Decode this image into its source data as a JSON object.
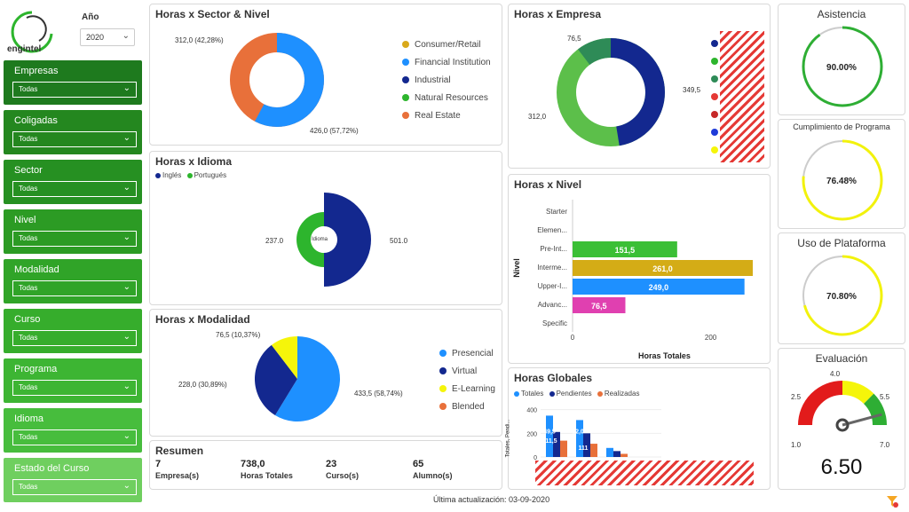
{
  "logo": {
    "text": "engintel"
  },
  "year": {
    "label": "Año",
    "value": "2020"
  },
  "slicers": [
    {
      "label": "Empresas",
      "value": "Todas",
      "color": "#1e7a1e"
    },
    {
      "label": "Coligadas",
      "value": "Todas",
      "color": "#24871f"
    },
    {
      "label": "Sector",
      "value": "Todas",
      "color": "#269022"
    },
    {
      "label": "Nivel",
      "value": "Todas",
      "color": "#2c9b24"
    },
    {
      "label": "Modalidad",
      "value": "Todas",
      "color": "#30a428"
    },
    {
      "label": "Curso",
      "value": "Todas",
      "color": "#36ad2c"
    },
    {
      "label": "Programa",
      "value": "Todas",
      "color": "#3db533"
    },
    {
      "label": "Idioma",
      "value": "Todas",
      "color": "#47bd3d"
    },
    {
      "label": "Estado del Curso",
      "value": "Todas",
      "color": "#6fcf5f"
    }
  ],
  "sector": {
    "title": "Horas x Sector & Nivel",
    "label_a": "312,0 (42,28%)",
    "label_b": "426,0 (57,72%)",
    "legend": [
      {
        "name": "Consumer/Retail",
        "color": "#d9a91b"
      },
      {
        "name": "Financial Institution",
        "color": "#1e90ff"
      },
      {
        "name": "Industrial",
        "color": "#13288f"
      },
      {
        "name": "Natural Resources",
        "color": "#2db52d"
      },
      {
        "name": "Real Estate",
        "color": "#e8703a"
      }
    ],
    "chart_data": {
      "type": "pie",
      "labels": [
        "Real Estate",
        "Financial Institution"
      ],
      "values": [
        312.0,
        426.0
      ],
      "percent": [
        42.28,
        57.72
      ]
    }
  },
  "empresa": {
    "title": "Horas x Empresa",
    "labels": [
      "76,5",
      "349,5",
      "312,0"
    ],
    "legend_colors": [
      "#13288f",
      "#2db52d",
      "#2e8b57",
      "#e53935",
      "#c62828",
      "#1e3ad8",
      "#f5f50a"
    ],
    "chart_data": {
      "type": "pie",
      "values": [
        349.5,
        312.0,
        76.5
      ]
    }
  },
  "asistencia": {
    "title": "Asistencia",
    "value": "90.00%",
    "pct": 0.9,
    "color": "#2eae34"
  },
  "cumplimiento": {
    "title": "Cumplimiento de Programa",
    "value": "76.48%",
    "pct": 0.7648,
    "color": "#f2f20c"
  },
  "plataforma": {
    "title": "Uso de Plataforma",
    "value": "70.80%",
    "pct": 0.708,
    "color": "#f2f20c"
  },
  "idioma": {
    "title": "Horas x Idioma",
    "legend": [
      {
        "name": "Inglés",
        "color": "#13288f"
      },
      {
        "name": "Portugués",
        "color": "#2db52d"
      }
    ],
    "center": "Idioma",
    "label_left": "237.0",
    "label_right": "501.0",
    "chart_data": {
      "type": "pie",
      "labels": [
        "Inglés",
        "Portugués"
      ],
      "values": [
        501.0,
        237.0
      ]
    }
  },
  "nivel": {
    "title": "Horas x Nivel",
    "ylabel": "Nivel",
    "xlabel": "Horas Totales",
    "ticks": [
      "0",
      "200"
    ],
    "chart_data": {
      "type": "bar",
      "categories": [
        "Starter",
        "Elemen...",
        "Pre-Int...",
        "Interme...",
        "Upper-I...",
        "Advanc...",
        "Specific"
      ],
      "values": [
        null,
        null,
        151.5,
        261.0,
        249.0,
        76.5,
        null
      ],
      "value_labels": [
        "",
        "",
        "151,5",
        "261,0",
        "249,0",
        "76,5",
        ""
      ],
      "colors": [
        "",
        "",
        "#3bbf36",
        "#d4ac16",
        "#1e90ff",
        "#e040b0",
        ""
      ],
      "xlim": [
        0,
        270
      ]
    }
  },
  "modalidad": {
    "title": "Horas x Modalidad",
    "label_top": "76,5 (10,37%)",
    "label_left": "228,0 (30,89%)",
    "label_right": "433,5 (58,74%)",
    "legend": [
      {
        "name": "Presencial",
        "color": "#1e90ff"
      },
      {
        "name": "Virtual",
        "color": "#13288f"
      },
      {
        "name": "E-Learning",
        "color": "#f5f50a"
      },
      {
        "name": "Blended",
        "color": "#e8703a"
      }
    ],
    "chart_data": {
      "type": "pie",
      "labels": [
        "Presencial",
        "Virtual",
        "E-Learning"
      ],
      "values": [
        433.5,
        228.0,
        76.5
      ]
    }
  },
  "globales": {
    "title": "Horas Globales",
    "legend": [
      {
        "name": "Totales",
        "color": "#1e90ff"
      },
      {
        "name": "Pendientes",
        "color": "#13288f"
      },
      {
        "name": "Realizadas",
        "color": "#e8703a"
      }
    ],
    "ylabel": "Totales, Pendi...",
    "yticks": [
      "400",
      "200",
      "0"
    ],
    "bar_labels": [
      "49,5",
      "211,5",
      "12,0",
      "111"
    ],
    "chart_data": {
      "type": "bar",
      "ylim": [
        0,
        420
      ],
      "groups": [
        {
          "values": [
            349.5,
            211.5,
            138.0
          ]
        },
        {
          "values": [
            312.0,
            200.0,
            112.0
          ]
        },
        {
          "values": [
            76.5,
            50.0,
            26.5
          ]
        }
      ]
    }
  },
  "evaluacion": {
    "title": "Evaluación",
    "value": "6.50",
    "ticks": [
      "1.0",
      "2.5",
      "4.0",
      "5.5",
      "7.0"
    ],
    "min": 1.0,
    "max": 7.0,
    "score": 6.5
  },
  "resumen": {
    "title": "Resumen",
    "items": [
      {
        "value": "7",
        "label": "Empresa(s)"
      },
      {
        "value": "738,0",
        "label": "Horas Totales"
      },
      {
        "value": "23",
        "label": "Curso(s)"
      },
      {
        "value": "65",
        "label": "Alumno(s)"
      }
    ]
  },
  "footer": {
    "text": "Última actualización: 03-09-2020"
  }
}
